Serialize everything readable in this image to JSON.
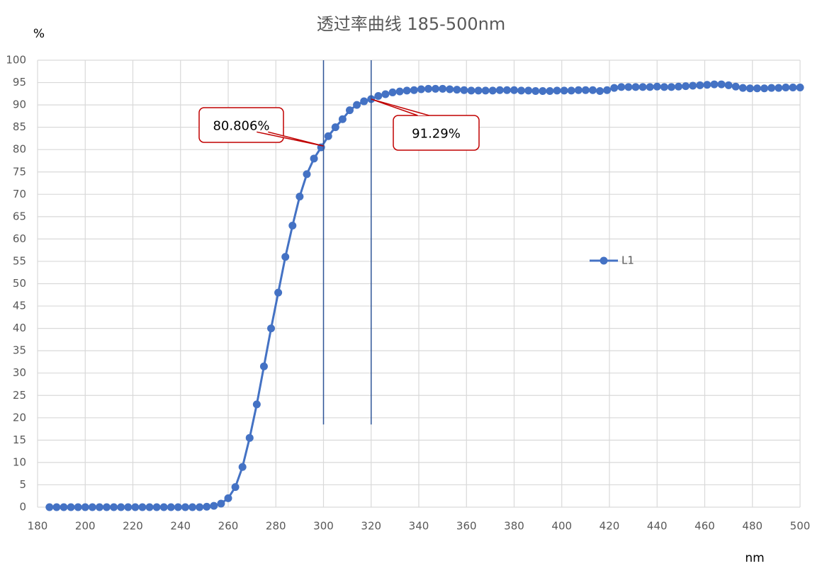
{
  "chart_data": {
    "type": "line",
    "title": "透过率曲线 185-500nm",
    "y_axis_label": "%",
    "x_axis_label": "nm",
    "xlim": [
      180,
      500
    ],
    "xticks": [
      180,
      200,
      220,
      240,
      260,
      280,
      300,
      320,
      340,
      360,
      380,
      400,
      420,
      440,
      460,
      480,
      500
    ],
    "ylim": [
      0,
      100
    ],
    "yticks": [
      0,
      5,
      10,
      15,
      20,
      25,
      30,
      35,
      40,
      45,
      50,
      55,
      60,
      65,
      70,
      75,
      80,
      85,
      90,
      95,
      100
    ],
    "grid": true,
    "legend_position": "right",
    "x": [
      185,
      188,
      191,
      194,
      197,
      200,
      203,
      206,
      209,
      212,
      215,
      218,
      221,
      224,
      227,
      230,
      233,
      236,
      239,
      242,
      245,
      248,
      251,
      254,
      257,
      260,
      263,
      266,
      269,
      272,
      275,
      278,
      281,
      284,
      287,
      290,
      293,
      296,
      299,
      302,
      305,
      308,
      311,
      314,
      317,
      320,
      323,
      326,
      329,
      332,
      335,
      338,
      341,
      344,
      347,
      350,
      353,
      356,
      359,
      362,
      365,
      368,
      371,
      374,
      377,
      380,
      383,
      386,
      389,
      392,
      395,
      398,
      401,
      404,
      407,
      410,
      413,
      416,
      419,
      422,
      425,
      428,
      431,
      434,
      437,
      440,
      443,
      446,
      449,
      452,
      455,
      458,
      461,
      464,
      467,
      470,
      473,
      476,
      479,
      482,
      485,
      488,
      491,
      494,
      497,
      500
    ],
    "series": [
      {
        "name": "L1",
        "color": "#4472c4",
        "values": [
          0,
          0,
          0,
          0,
          0,
          0,
          0,
          0,
          0,
          0,
          0,
          0,
          0,
          0,
          0,
          0,
          0,
          0,
          0,
          0,
          0,
          0,
          0.1,
          0.3,
          0.8,
          2.0,
          4.5,
          9,
          15.5,
          23,
          31.5,
          40,
          48,
          56,
          63,
          69.5,
          74.5,
          78,
          80.5,
          83,
          85,
          86.8,
          88.8,
          90,
          90.8,
          91.3,
          92,
          92.4,
          92.8,
          93,
          93.2,
          93.3,
          93.5,
          93.6,
          93.6,
          93.6,
          93.5,
          93.4,
          93.3,
          93.2,
          93.2,
          93.2,
          93.2,
          93.3,
          93.3,
          93.3,
          93.2,
          93.2,
          93.1,
          93.1,
          93.1,
          93.2,
          93.2,
          93.2,
          93.3,
          93.3,
          93.3,
          93.1,
          93.3,
          93.8,
          94,
          94,
          94,
          94,
          94,
          94.1,
          94,
          94,
          94.1,
          94.2,
          94.3,
          94.4,
          94.5,
          94.6,
          94.6,
          94.4,
          94.1,
          93.8,
          93.7,
          93.7,
          93.7,
          93.8,
          93.8,
          93.9,
          93.9,
          93.9
        ]
      }
    ],
    "vertical_lines": [
      {
        "x": 300,
        "ymin": 18.5,
        "ymax": 100,
        "color": "#2f5597"
      },
      {
        "x": 320,
        "ymin": 18.5,
        "ymax": 100,
        "color": "#2f5597"
      }
    ],
    "annotations": [
      {
        "text": "80.806%",
        "x": 300,
        "y": 80.806,
        "color": "#c00000"
      },
      {
        "text": "91.29%",
        "x": 320,
        "y": 91.29,
        "color": "#c00000"
      }
    ]
  }
}
